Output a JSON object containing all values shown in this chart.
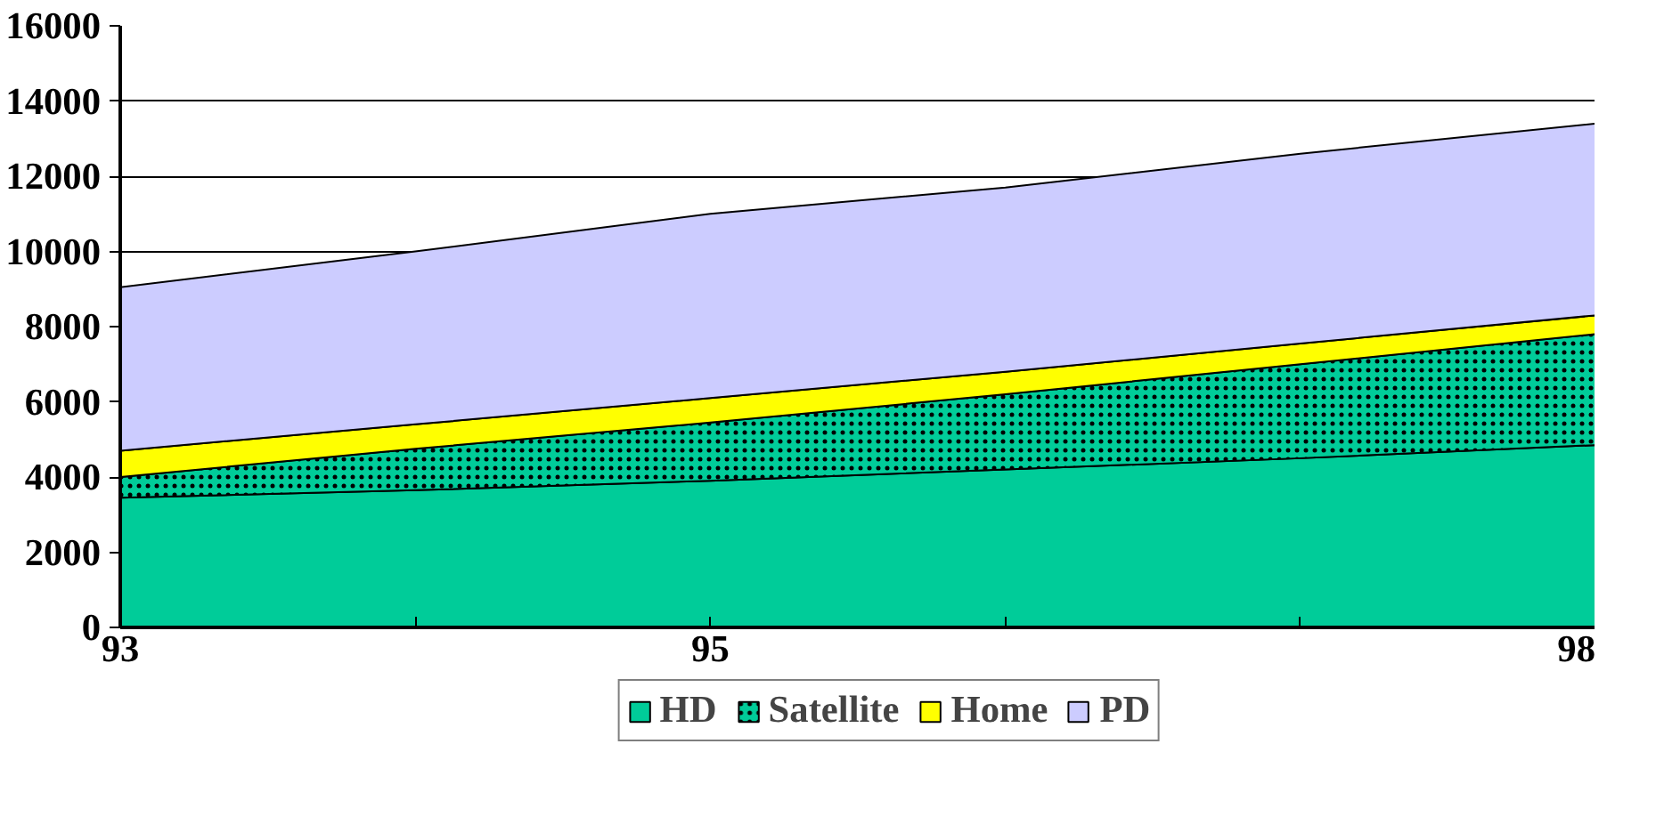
{
  "chart_data": {
    "type": "area",
    "stacked": true,
    "x": [
      93,
      94,
      95,
      96,
      97,
      98
    ],
    "series": [
      {
        "name": "HD",
        "color": "#00cc99",
        "values": [
          3450,
          3650,
          3900,
          4200,
          4500,
          4850
        ]
      },
      {
        "name": "Satellite",
        "color": "#00cc99",
        "values": [
          550,
          1100,
          1550,
          2000,
          2500,
          2950
        ]
      },
      {
        "name": "Home",
        "color": "#ffff00",
        "values": [
          700,
          650,
          650,
          600,
          550,
          500
        ]
      },
      {
        "name": "PD",
        "color": "#ccccff",
        "values": [
          4350,
          4600,
          4900,
          4900,
          5050,
          5100
        ]
      }
    ],
    "xlim": [
      93,
      98
    ],
    "xticks": [
      93,
      {
        "value": 94,
        "label": null
      },
      95,
      {
        "value": 96,
        "label": null
      },
      {
        "value": 97,
        "label": null
      },
      98
    ],
    "ylim": [
      0,
      16000
    ],
    "yticks": [
      0,
      2000,
      4000,
      6000,
      8000,
      10000,
      12000,
      14000,
      16000
    ],
    "grid": "y",
    "legend": "bottom"
  }
}
